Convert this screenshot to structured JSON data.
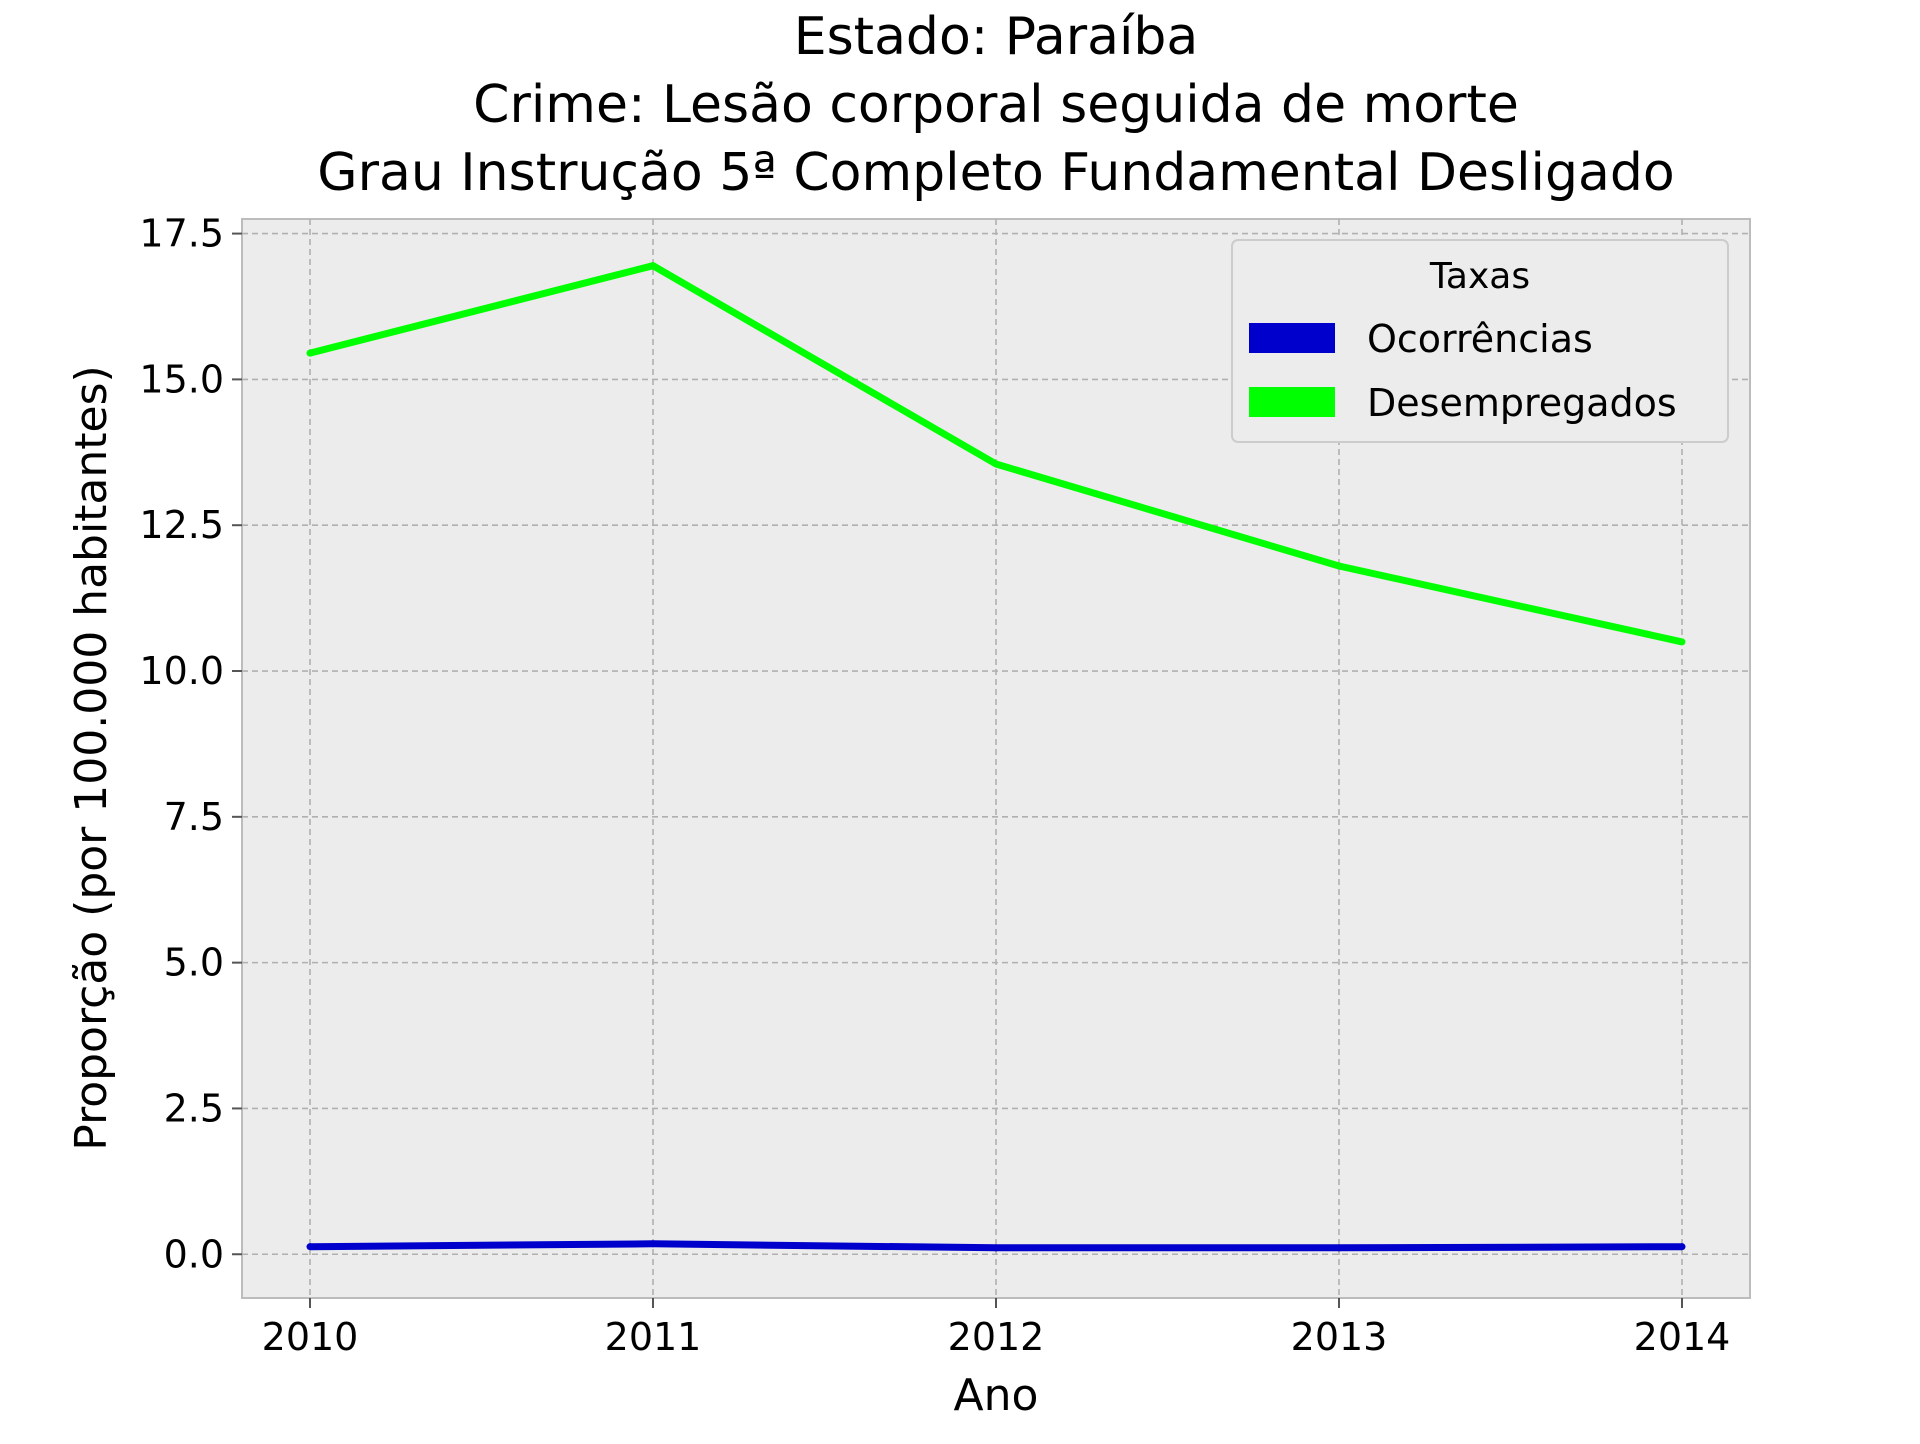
{
  "chart_data": {
    "type": "line",
    "title_lines": [
      "Estado: Paraíba",
      "Crime: Lesão corporal seguida de morte",
      "Grau Instrução  5ª Completo Fundamental   Desligado"
    ],
    "xlabel": "Ano",
    "ylabel": "Proporção (por 100.000 habitantes)",
    "x": [
      "2010",
      "2011",
      "2012",
      "2013",
      "2014"
    ],
    "ylim": [
      -0.75,
      17.75
    ],
    "yticks": [
      "0.0",
      "2.5",
      "5.0",
      "7.5",
      "10.0",
      "12.5",
      "15.0",
      "17.5"
    ],
    "grid": true,
    "legend": {
      "title": "Taxas",
      "placement": "top-right"
    },
    "series": [
      {
        "name": "Ocorrências",
        "color": "#0000cc",
        "values": [
          0.13,
          0.18,
          0.11,
          0.11,
          0.13
        ]
      },
      {
        "name": "Desempregados",
        "color": "#00ff00",
        "values": [
          15.45,
          16.95,
          13.55,
          11.8,
          10.5
        ]
      }
    ]
  }
}
